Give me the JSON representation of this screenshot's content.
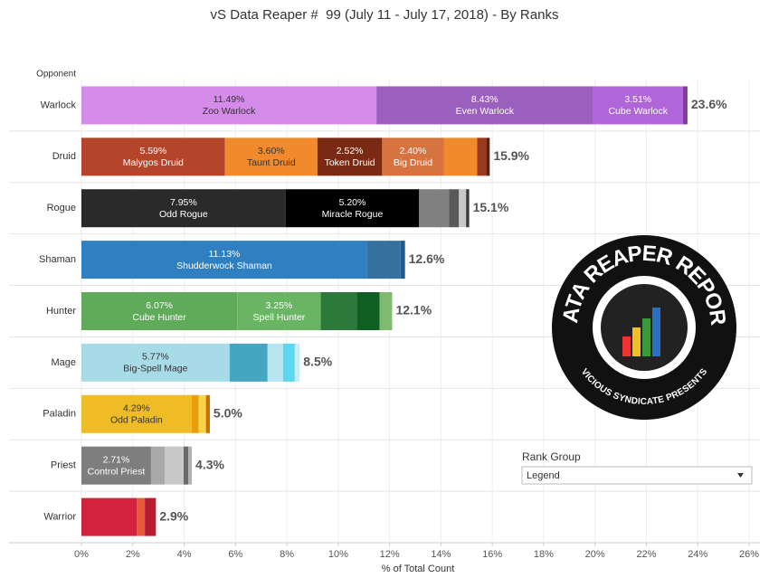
{
  "chart_data": {
    "type": "stacked-bar-horizontal",
    "title": "vS Data Reaper #  99 (July 11 - July 17, 2018) - By Ranks",
    "category_axis_label": "Opponent",
    "x_axis_label": "% of Total Count",
    "xlim": [
      0,
      26
    ],
    "xticks": [
      {
        "value": 0,
        "label": "0%"
      },
      {
        "value": 2,
        "label": "2%"
      },
      {
        "value": 4,
        "label": "4%"
      },
      {
        "value": 6,
        "label": "6%"
      },
      {
        "value": 8,
        "label": "8%"
      },
      {
        "value": 10,
        "label": "10%"
      },
      {
        "value": 12,
        "label": "12%"
      },
      {
        "value": 14,
        "label": "14%"
      },
      {
        "value": 16,
        "label": "16%"
      },
      {
        "value": 18,
        "label": "18%"
      },
      {
        "value": 20,
        "label": "20%"
      },
      {
        "value": 22,
        "label": "22%"
      },
      {
        "value": 24,
        "label": "24%"
      },
      {
        "value": 26,
        "label": "26%"
      }
    ],
    "grid": true,
    "rows": [
      {
        "category": "Warlock",
        "total": 23.6,
        "total_label": "23.6%",
        "segments": [
          {
            "name": "Zoo Warlock",
            "value": 11.49,
            "value_label": "11.49%",
            "color": "#d48bea"
          },
          {
            "name": "Even Warlock",
            "value": 8.43,
            "value_label": "8.43%",
            "color": "#9b5fbd"
          },
          {
            "name": "Cube Warlock",
            "value": 3.51,
            "value_label": "3.51%",
            "color": "#b065d8"
          },
          {
            "value": 0.17,
            "color": "#7e3c9a"
          }
        ]
      },
      {
        "category": "Druid",
        "total": 15.9,
        "total_label": "15.9%",
        "segments": [
          {
            "name": "Malygos Druid",
            "value": 5.59,
            "value_label": "5.59%",
            "color": "#b5452a"
          },
          {
            "name": "Taunt Druid",
            "value": 3.6,
            "value_label": "3.60%",
            "color": "#f08a2c"
          },
          {
            "name": "Token Druid",
            "value": 2.52,
            "value_label": "2.52%",
            "color": "#7a2a12"
          },
          {
            "name": "Big Druid",
            "value": 2.4,
            "value_label": "2.40%",
            "color": "#d6733f"
          },
          {
            "value": 1.3,
            "color": "#f08a2c"
          },
          {
            "value": 0.35,
            "color": "#9a3a1f"
          },
          {
            "value": 0.14,
            "color": "#5e200f"
          }
        ]
      },
      {
        "category": "Rogue",
        "total": 15.1,
        "total_label": "15.1%",
        "segments": [
          {
            "name": "Odd Rogue",
            "value": 7.95,
            "value_label": "7.95%",
            "color": "#2a2a2a"
          },
          {
            "name": "Miracle Rogue",
            "value": 5.2,
            "value_label": "5.20%",
            "color": "#000000"
          },
          {
            "value": 1.16,
            "color": "#808080"
          },
          {
            "value": 0.39,
            "color": "#5a5a5a"
          },
          {
            "value": 0.28,
            "color": "#c8c8c8"
          },
          {
            "value": 0.12,
            "color": "#3a3a3a"
          }
        ]
      },
      {
        "category": "Shaman",
        "total": 12.6,
        "total_label": "12.6%",
        "segments": [
          {
            "name": "Shudderwock Shaman",
            "value": 11.13,
            "value_label": "11.13%",
            "color": "#2f7fc1"
          },
          {
            "value": 1.3,
            "color": "#3572a0"
          },
          {
            "value": 0.17,
            "color": "#1c5a8f"
          }
        ]
      },
      {
        "category": "Hunter",
        "total": 12.1,
        "total_label": "12.1%",
        "segments": [
          {
            "name": "Cube Hunter",
            "value": 6.07,
            "value_label": "6.07%",
            "color": "#5fab59"
          },
          {
            "name": "Spell Hunter",
            "value": 3.25,
            "value_label": "3.25%",
            "color": "#6ab563"
          },
          {
            "value": 1.41,
            "color": "#2b7a3a"
          },
          {
            "value": 0.88,
            "color": "#0f5e22"
          },
          {
            "value": 0.49,
            "color": "#7fba6f"
          }
        ]
      },
      {
        "category": "Mage",
        "total": 8.5,
        "total_label": "8.5%",
        "segments": [
          {
            "name": "Big-Spell Mage",
            "value": 5.77,
            "value_label": "5.77%",
            "color": "#a8dbe8"
          },
          {
            "value": 1.48,
            "color": "#46a5c0"
          },
          {
            "value": 0.6,
            "color": "#b8e6f0"
          },
          {
            "value": 0.46,
            "color": "#5dd6f2"
          },
          {
            "value": 0.19,
            "color": "#c7eef5"
          }
        ]
      },
      {
        "category": "Paladin",
        "total": 5.0,
        "total_label": "5.0%",
        "segments": [
          {
            "name": "Odd Paladin",
            "value": 4.29,
            "value_label": "4.29%",
            "color": "#f0bc26"
          },
          {
            "value": 0.28,
            "color": "#e89f0f"
          },
          {
            "value": 0.28,
            "color": "#f5d44a"
          },
          {
            "value": 0.15,
            "color": "#c96e00"
          }
        ]
      },
      {
        "category": "Priest",
        "total": 4.3,
        "total_label": "4.3%",
        "segments": [
          {
            "name": "Control Priest",
            "value": 2.71,
            "value_label": "2.71%",
            "color": "#7e7e7e"
          },
          {
            "value": 0.53,
            "color": "#a8a8a8"
          },
          {
            "value": 0.74,
            "color": "#c8c8c8"
          },
          {
            "value": 0.18,
            "color": "#6a6a6a"
          },
          {
            "value": 0.14,
            "color": "#b0b0b0"
          }
        ]
      },
      {
        "category": "Warrior",
        "total": 2.9,
        "total_label": "2.9%",
        "segments": [
          {
            "value": 2.15,
            "color": "#d1233e"
          },
          {
            "value": 0.32,
            "color": "#e65a3a"
          },
          {
            "value": 0.43,
            "color": "#b81a30"
          }
        ]
      }
    ]
  },
  "logo": {
    "title": "DATA REAPER REPORT",
    "subtitle": "VICIOUS SYNDICATE PRESENTS"
  },
  "filter": {
    "title": "Rank Group",
    "selected": "Legend"
  }
}
